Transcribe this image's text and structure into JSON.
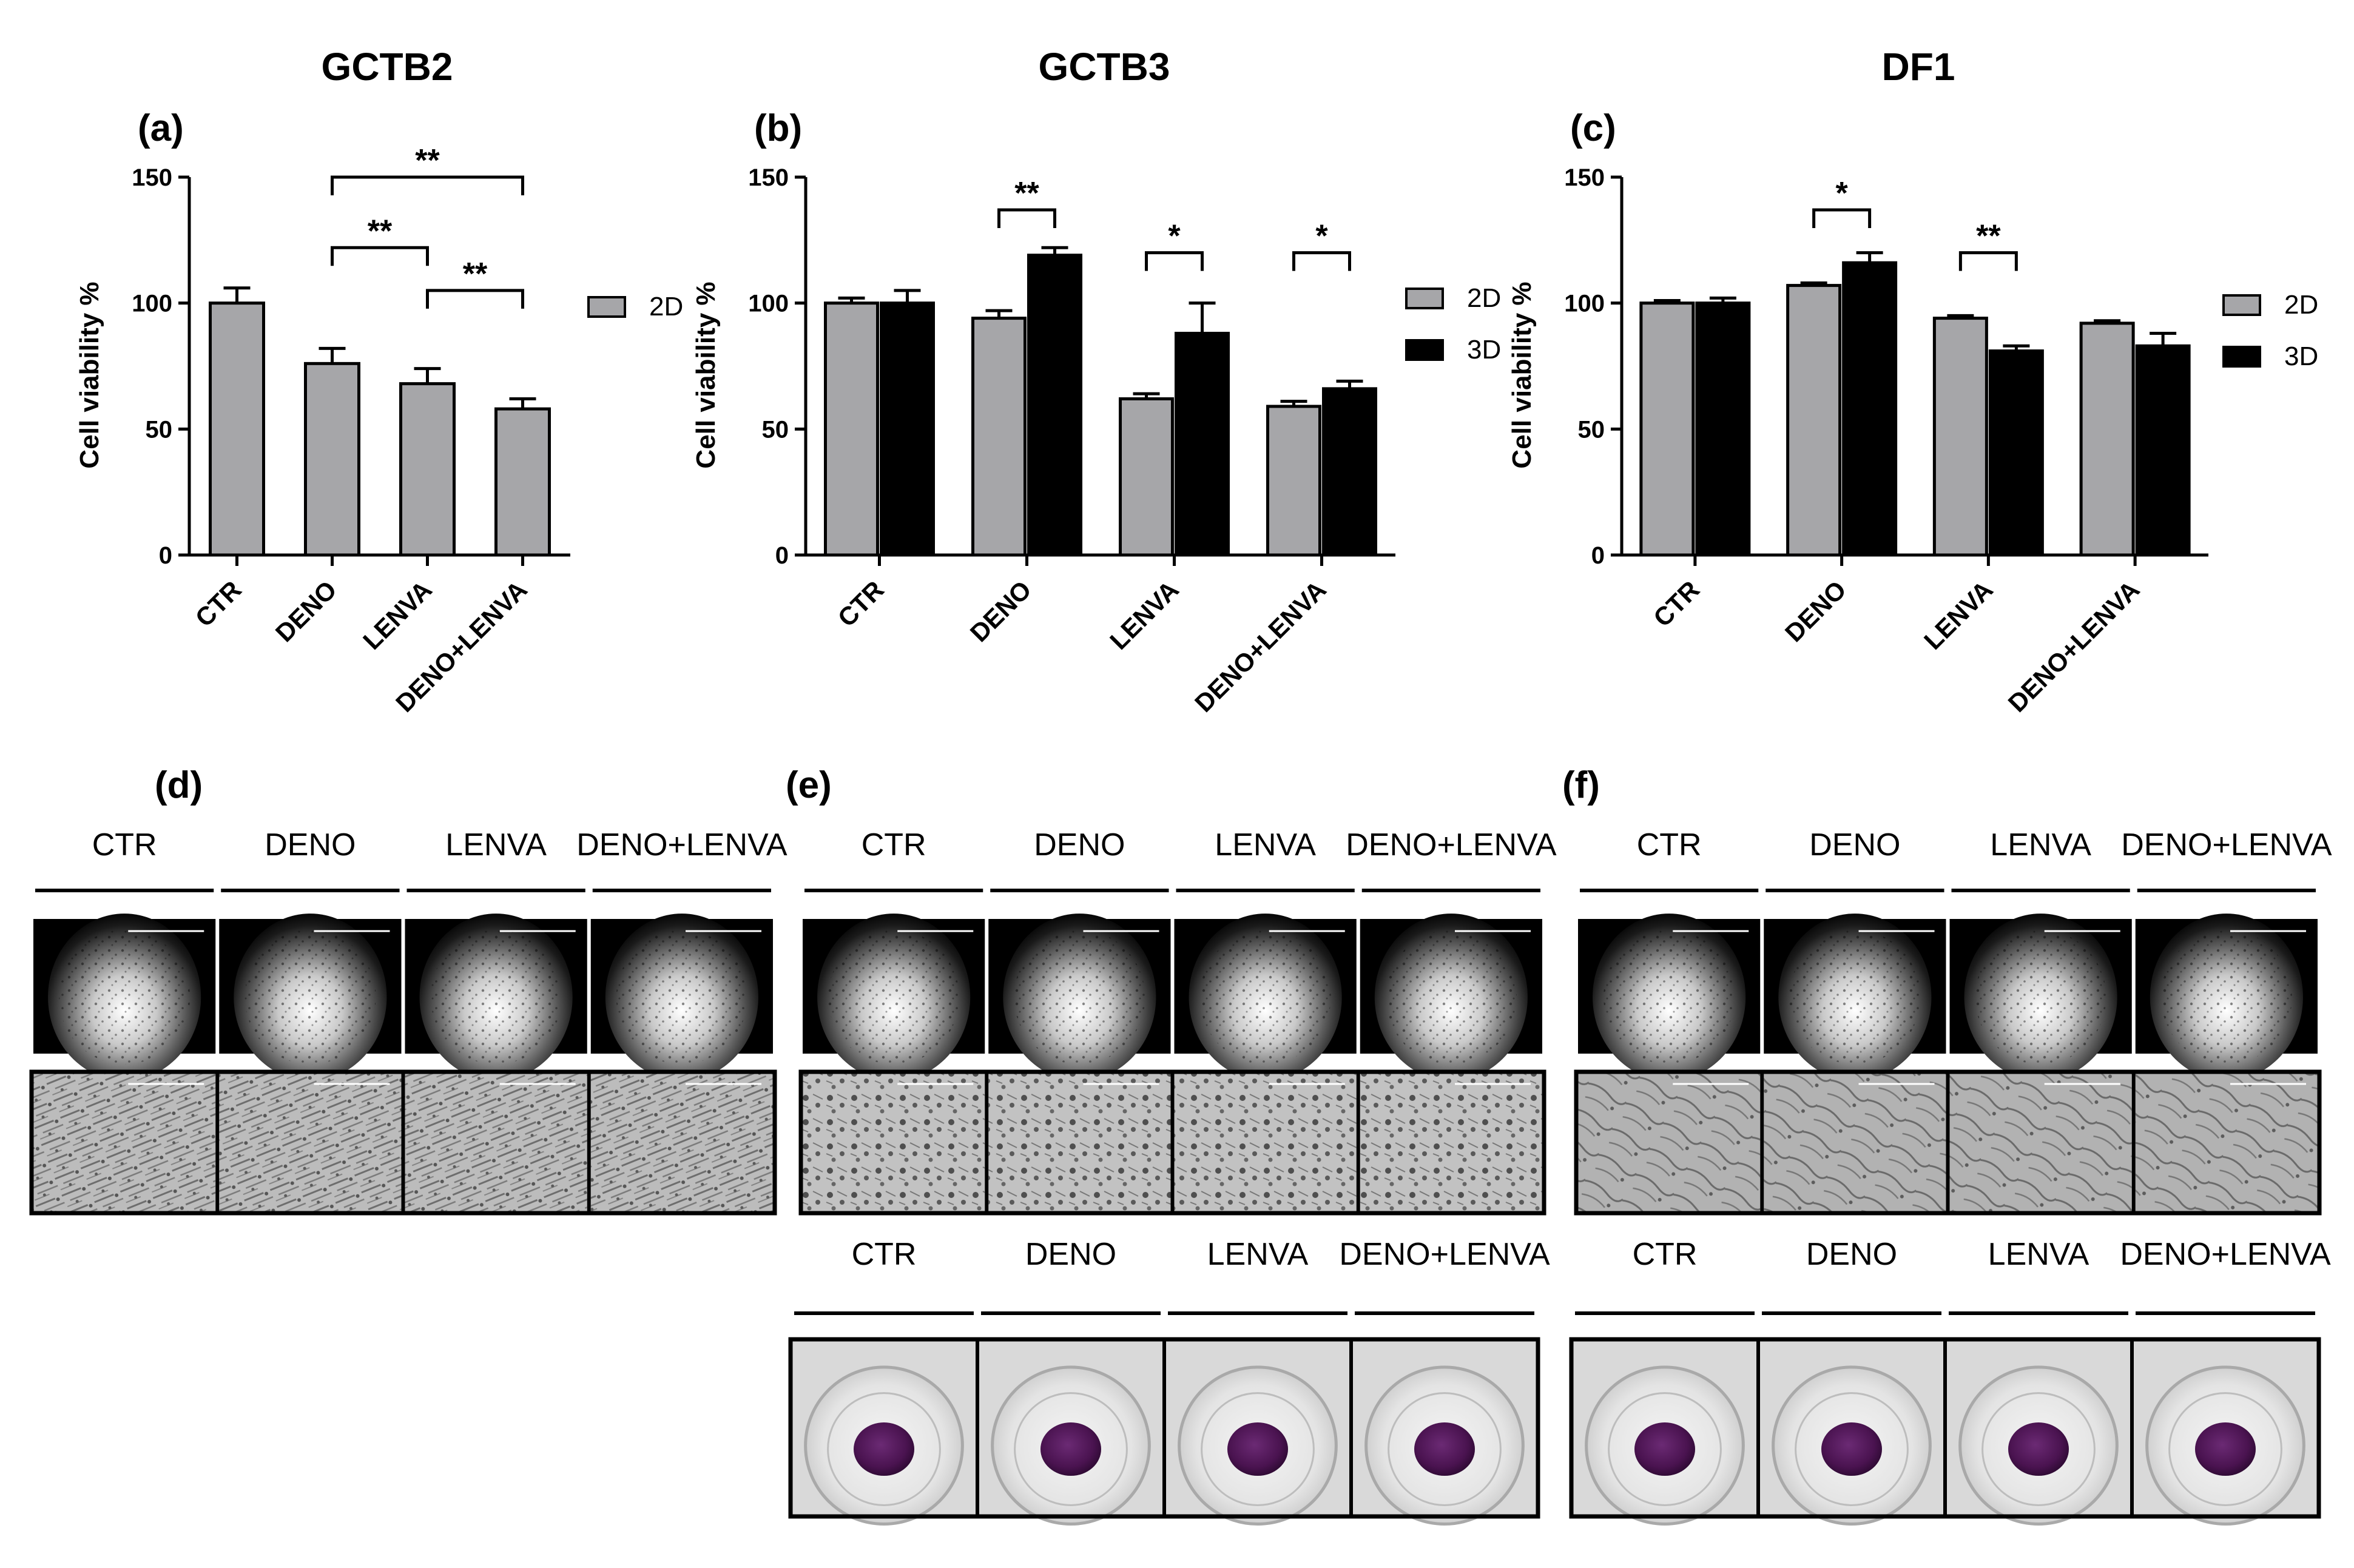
{
  "chart_data": [
    {
      "type": "bar",
      "title": "GCTB2",
      "panel_label": "(a)",
      "ylabel": "Cell viability %",
      "ylim": [
        0,
        150
      ],
      "yticks": [
        "0",
        "50",
        "100",
        "150"
      ],
      "categories": [
        "CTR",
        "DENO",
        "LENVA",
        "DENO+LENVA"
      ],
      "series": [
        {
          "name": "2D",
          "color": "#a6a6a9",
          "values": [
            100,
            76,
            68,
            58
          ],
          "errors": [
            6,
            6,
            6,
            4
          ]
        }
      ],
      "significance": [
        {
          "from": 1,
          "to": 3,
          "level": 150,
          "label": "**"
        },
        {
          "from": 1,
          "to": 2,
          "level": 122,
          "label": "**"
        },
        {
          "from": 2,
          "to": 3,
          "level": 105,
          "label": "**"
        }
      ],
      "legend_position": "right"
    },
    {
      "type": "bar",
      "title": "GCTB3",
      "panel_label": "(b)",
      "ylabel": "Cell viability %",
      "ylim": [
        0,
        150
      ],
      "yticks": [
        "0",
        "50",
        "100",
        "150"
      ],
      "categories": [
        "CTR",
        "DENO",
        "LENVA",
        "DENO+LENVA"
      ],
      "series": [
        {
          "name": "2D",
          "color": "#a6a6a9",
          "values": [
            100,
            94,
            62,
            59
          ],
          "errors": [
            2,
            3,
            2,
            2
          ]
        },
        {
          "name": "3D",
          "color": "#000000",
          "values": [
            100,
            119,
            88,
            66
          ],
          "errors": [
            5,
            3,
            12,
            3
          ]
        }
      ],
      "significance": [
        {
          "category": 1,
          "level": 137,
          "label": "**"
        },
        {
          "category": 2,
          "level": 120,
          "label": "*"
        },
        {
          "category": 3,
          "level": 120,
          "label": "*"
        }
      ],
      "legend_position": "right"
    },
    {
      "type": "bar",
      "title": "DF1",
      "panel_label": "(c)",
      "ylabel": "Cell viability %",
      "ylim": [
        0,
        150
      ],
      "yticks": [
        "0",
        "50",
        "100",
        "150"
      ],
      "categories": [
        "CTR",
        "DENO",
        "LENVA",
        "DENO+LENVA"
      ],
      "series": [
        {
          "name": "2D",
          "color": "#a6a6a9",
          "values": [
            100,
            107,
            94,
            92
          ],
          "errors": [
            1,
            1,
            1,
            1
          ]
        },
        {
          "name": "3D",
          "color": "#000000",
          "values": [
            100,
            116,
            81,
            83
          ],
          "errors": [
            2,
            4,
            2,
            5
          ]
        }
      ],
      "significance": [
        {
          "category": 1,
          "level": 137,
          "label": "*"
        },
        {
          "category": 2,
          "level": 120,
          "label": "**"
        }
      ],
      "legend_position": "right"
    }
  ],
  "image_panels": [
    {
      "label": "(d)",
      "columns": [
        "CTR",
        "DENO",
        "LENVA",
        "DENO+LENVA"
      ],
      "rows": [
        "fluorescence",
        "brightfield"
      ]
    },
    {
      "label": "(e)",
      "columns": [
        "CTR",
        "DENO",
        "LENVA",
        "DENO+LENVA"
      ],
      "rows": [
        "fluorescence",
        "brightfield"
      ],
      "spheroids": {
        "columns": [
          "CTR",
          "DENO",
          "LENVA",
          "DENO+LENVA"
        ]
      }
    },
    {
      "label": "(f)",
      "columns": [
        "CTR",
        "DENO",
        "LENVA",
        "DENO+LENVA"
      ],
      "rows": [
        "fluorescence",
        "brightfield"
      ],
      "spheroids": {
        "columns": [
          "CTR",
          "DENO",
          "LENVA",
          "DENO+LENVA"
        ]
      }
    }
  ],
  "colors": {
    "bar_2d": "#a6a6a9",
    "bar_3d": "#000000",
    "micro_background": "#000000",
    "brightfield_background": "#bdbdbd",
    "spheroid": "#4a1350"
  }
}
